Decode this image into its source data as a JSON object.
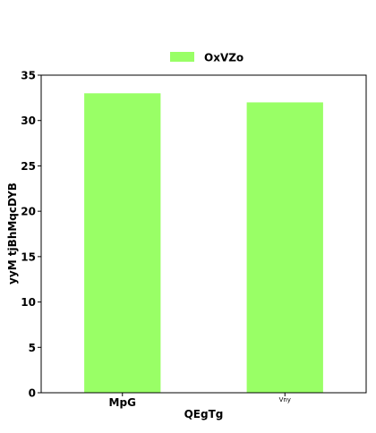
{
  "chart_data": {
    "type": "bar",
    "categories": [
      "MpG",
      "Vny"
    ],
    "series": [
      {
        "name": "OxVZo",
        "values": [
          33,
          32
        ],
        "color": "#99ff66"
      }
    ],
    "title": "",
    "xlabel": "QEgTg",
    "ylabel": "yyM tjBhMqcDYB",
    "ylim": [
      0,
      35
    ],
    "yticks": [
      0,
      5,
      10,
      15,
      20,
      25,
      30,
      35
    ],
    "legend_position": "top-center",
    "grid": false
  }
}
